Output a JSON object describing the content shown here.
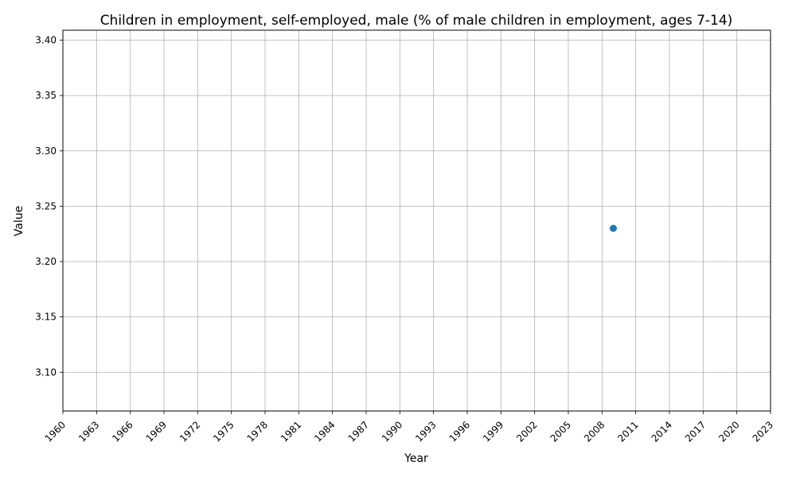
{
  "chart_data": {
    "type": "scatter",
    "title": "Children in employment, self-employed, male (% of male children in employment, ages 7-14)",
    "xlabel": "Year",
    "ylabel": "Value",
    "xlim": [
      1960,
      2023
    ],
    "ylim": [
      3.065,
      3.409
    ],
    "x_ticks": [
      1960,
      1963,
      1966,
      1969,
      1972,
      1975,
      1978,
      1981,
      1984,
      1987,
      1990,
      1993,
      1996,
      1999,
      2002,
      2005,
      2008,
      2011,
      2014,
      2017,
      2020,
      2023
    ],
    "y_ticks": [
      3.1,
      3.15,
      3.2,
      3.25,
      3.3,
      3.35,
      3.4
    ],
    "y_tick_labels": [
      "3.10",
      "3.15",
      "3.20",
      "3.25",
      "3.30",
      "3.35",
      "3.40"
    ],
    "grid": true,
    "series": [
      {
        "x": [
          2009
        ],
        "values": [
          3.23
        ],
        "color": "#1f77b4"
      }
    ]
  }
}
